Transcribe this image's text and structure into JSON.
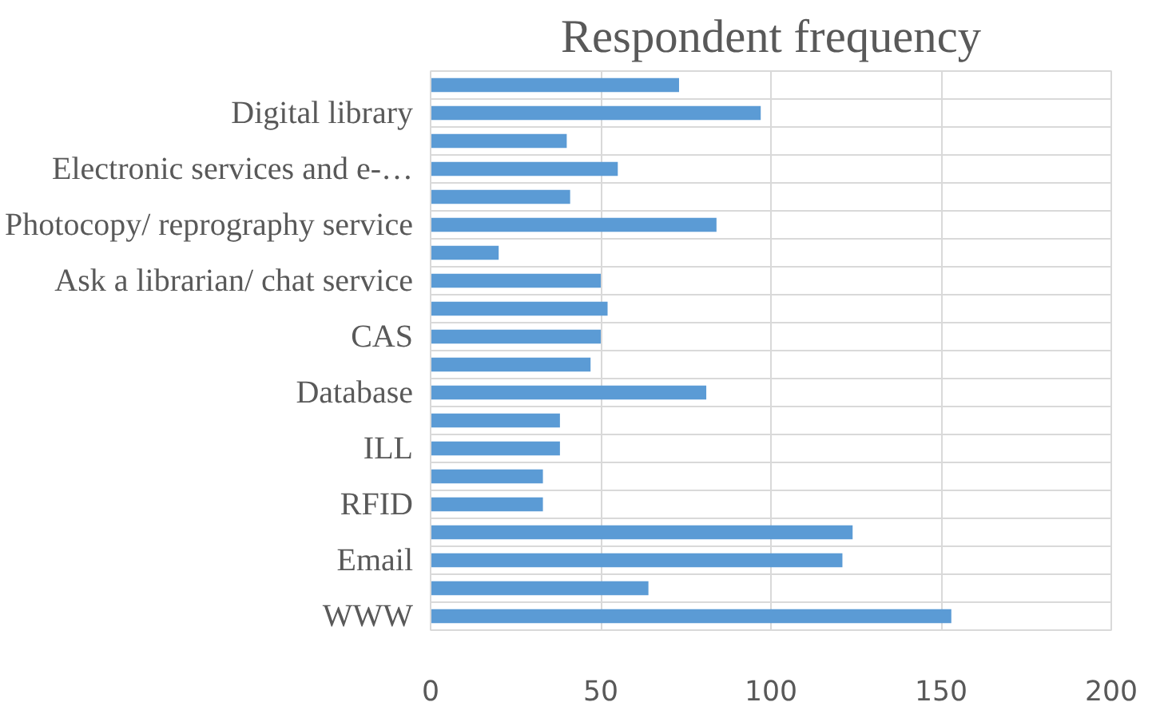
{
  "chart_data": {
    "type": "bar",
    "orientation": "horizontal",
    "title": "Respondent frequency",
    "categories": [
      null,
      "Digital library",
      null,
      "Electronic services and e-…",
      null,
      "Photocopy/ reprography service",
      null,
      "Ask a librarian/ chat service",
      null,
      "CAS",
      null,
      "Database",
      null,
      "ILL",
      null,
      "RFID",
      null,
      "Email",
      null,
      "WWW"
    ],
    "values": [
      73,
      97,
      40,
      55,
      41,
      84,
      20,
      50,
      52,
      50,
      47,
      81,
      38,
      38,
      33,
      33,
      124,
      121,
      64,
      153
    ],
    "color": "#5b9bd5",
    "xlim": [
      0,
      200
    ],
    "xticks": [
      0,
      50,
      100,
      150,
      200
    ],
    "grid": true
  }
}
